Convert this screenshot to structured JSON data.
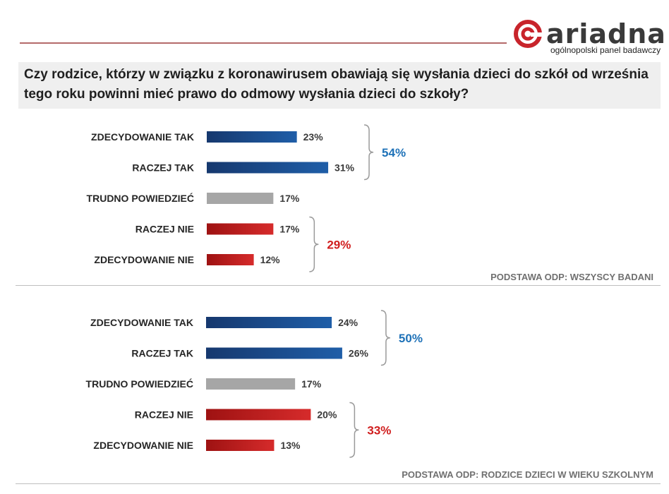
{
  "logo": {
    "name": "ariadna",
    "subtitle": "ogólnopolski panel badawczy"
  },
  "question": "Czy rodzice, którzy w związku z koronawirusem obawiają się wysłania dzieci do szkół od września tego roku powinni mieć prawo do odmowy wysłania dzieci do szkoły?",
  "colors": {
    "positive": "#1f5ea8",
    "neutral": "#a6a6a6",
    "negative": "#d62b2b",
    "positive_text": "#1f72b8",
    "negative_text": "#d01e1e"
  },
  "chart_data": [
    {
      "type": "bar",
      "orientation": "horizontal",
      "categories": [
        "ZDECYDOWANIE  TAK",
        "RACZEJ TAK",
        "TRUDNO  POWIEDZIEĆ",
        "RACZEJ NIE",
        "ZDECYDOWANIE  NIE"
      ],
      "values": [
        23,
        31,
        17,
        17,
        12
      ],
      "value_labels": [
        "23%",
        "31%",
        "17%",
        "17%",
        "12%"
      ],
      "groups": [
        {
          "name": "yes",
          "label": "54%",
          "from": 0,
          "to": 1
        },
        {
          "name": "no",
          "label": "29%",
          "from": 3,
          "to": 4
        }
      ],
      "basis": "PODSTAWA ODP: WSZYSCY BADANI",
      "unit": "%"
    },
    {
      "type": "bar",
      "orientation": "horizontal",
      "categories": [
        "ZDECYDOWANIE  TAK",
        "RACZEJ TAK",
        "TRUDNO  POWIEDZIEĆ",
        "RACZEJ NIE",
        "ZDECYDOWANIE  NIE"
      ],
      "values": [
        24,
        26,
        17,
        20,
        13
      ],
      "value_labels": [
        "24%",
        "26%",
        "17%",
        "20%",
        "13%"
      ],
      "groups": [
        {
          "name": "yes",
          "label": "50%",
          "from": 0,
          "to": 1
        },
        {
          "name": "no",
          "label": "33%",
          "from": 3,
          "to": 4
        }
      ],
      "basis": "PODSTAWA ODP: RODZICE DZIECI W WIEKU SZKOLNYM",
      "unit": "%"
    }
  ]
}
